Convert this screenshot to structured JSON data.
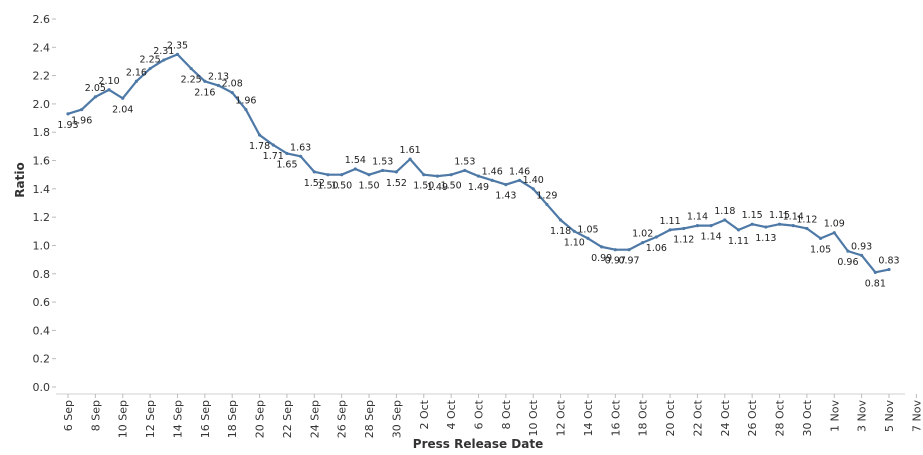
{
  "chart_data": {
    "type": "line",
    "title": "",
    "xlabel": "Press Release Date",
    "ylabel": "Ratio",
    "ylim": [
      0,
      2.6
    ],
    "y_ticks": [
      "0.0",
      "0.2",
      "0.4",
      "0.6",
      "0.8",
      "1.0",
      "1.2",
      "1.4",
      "1.6",
      "1.8",
      "2.0",
      "2.2",
      "2.4",
      "2.6"
    ],
    "x_tick_labels": [
      "6 Sep",
      "8 Sep",
      "10 Sep",
      "12 Sep",
      "14 Sep",
      "16 Sep",
      "18 Sep",
      "20 Sep",
      "22 Sep",
      "24 Sep",
      "26 Sep",
      "28 Sep",
      "30 Sep",
      "2 Oct",
      "4 Oct",
      "6 Oct",
      "8 Oct",
      "10 Oct",
      "12 Oct",
      "14 Oct",
      "16 Oct",
      "18 Oct",
      "20 Oct",
      "22 Oct",
      "24 Oct",
      "26 Oct",
      "28 Oct",
      "30 Oct",
      "1 Nov",
      "3 Nov",
      "5 Nov",
      "7 Nov"
    ],
    "grid": false,
    "line_color": "#4e79a7",
    "points": [
      {
        "x": "6 Sep",
        "y": 1.93
      },
      {
        "x": "7 Sep",
        "y": 1.96
      },
      {
        "x": "8 Sep",
        "y": 2.05
      },
      {
        "x": "9 Sep",
        "y": 2.1
      },
      {
        "x": "10 Sep",
        "y": 2.04
      },
      {
        "x": "11 Sep",
        "y": 2.16
      },
      {
        "x": "12 Sep",
        "y": 2.25
      },
      {
        "x": "13 Sep",
        "y": 2.31
      },
      {
        "x": "14 Sep",
        "y": 2.35
      },
      {
        "x": "15 Sep",
        "y": 2.25
      },
      {
        "x": "16 Sep",
        "y": 2.16
      },
      {
        "x": "17 Sep",
        "y": 2.13
      },
      {
        "x": "18 Sep",
        "y": 2.08
      },
      {
        "x": "19 Sep",
        "y": 1.96
      },
      {
        "x": "20 Sep",
        "y": 1.78
      },
      {
        "x": "21 Sep",
        "y": 1.71
      },
      {
        "x": "22 Sep",
        "y": 1.65
      },
      {
        "x": "23 Sep",
        "y": 1.63
      },
      {
        "x": "24 Sep",
        "y": 1.52
      },
      {
        "x": "25 Sep",
        "y": 1.5
      },
      {
        "x": "26 Sep",
        "y": 1.5
      },
      {
        "x": "27 Sep",
        "y": 1.54
      },
      {
        "x": "28 Sep",
        "y": 1.5
      },
      {
        "x": "29 Sep",
        "y": 1.53
      },
      {
        "x": "30 Sep",
        "y": 1.52
      },
      {
        "x": "1 Oct",
        "y": 1.61
      },
      {
        "x": "2 Oct",
        "y": 1.5
      },
      {
        "x": "3 Oct",
        "y": 1.49
      },
      {
        "x": "4 Oct",
        "y": 1.5
      },
      {
        "x": "5 Oct",
        "y": 1.53
      },
      {
        "x": "6 Oct",
        "y": 1.49
      },
      {
        "x": "7 Oct",
        "y": 1.46
      },
      {
        "x": "8 Oct",
        "y": 1.43
      },
      {
        "x": "9 Oct",
        "y": 1.46
      },
      {
        "x": "10 Oct",
        "y": 1.4
      },
      {
        "x": "11 Oct",
        "y": 1.29
      },
      {
        "x": "12 Oct",
        "y": 1.18
      },
      {
        "x": "13 Oct",
        "y": 1.1
      },
      {
        "x": "14 Oct",
        "y": 1.05
      },
      {
        "x": "15 Oct",
        "y": 0.99
      },
      {
        "x": "16 Oct",
        "y": 0.97
      },
      {
        "x": "17 Oct",
        "y": 0.97
      },
      {
        "x": "18 Oct",
        "y": 1.02
      },
      {
        "x": "19 Oct",
        "y": 1.06
      },
      {
        "x": "20 Oct",
        "y": 1.11
      },
      {
        "x": "21 Oct",
        "y": 1.12
      },
      {
        "x": "22 Oct",
        "y": 1.14
      },
      {
        "x": "23 Oct",
        "y": 1.14
      },
      {
        "x": "24 Oct",
        "y": 1.18
      },
      {
        "x": "25 Oct",
        "y": 1.11
      },
      {
        "x": "26 Oct",
        "y": 1.15
      },
      {
        "x": "27 Oct",
        "y": 1.13
      },
      {
        "x": "28 Oct",
        "y": 1.15
      },
      {
        "x": "29 Oct",
        "y": 1.14
      },
      {
        "x": "30 Oct",
        "y": 1.12
      },
      {
        "x": "31 Oct",
        "y": 1.05
      },
      {
        "x": "1 Nov",
        "y": 1.09
      },
      {
        "x": "2 Nov",
        "y": 0.96
      },
      {
        "x": "3 Nov",
        "y": 0.93
      },
      {
        "x": "4 Nov",
        "y": 0.81
      },
      {
        "x": "5 Nov",
        "y": 0.83
      }
    ]
  }
}
